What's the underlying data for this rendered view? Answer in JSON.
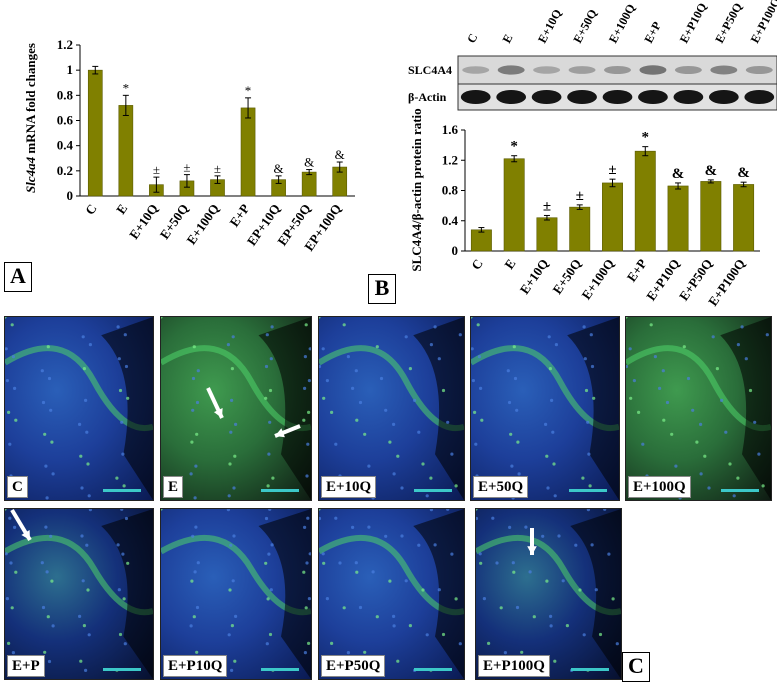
{
  "panelA": {
    "tag": "A",
    "chart_data": {
      "type": "bar",
      "ylabel_italic": "Slc4a4",
      "ylabel_rest": " mRNA fold changes",
      "categories": [
        "C",
        "E",
        "E+10Q",
        "E+50Q",
        "E+100Q",
        "E+P",
        "EP+10Q",
        "EP+50Q",
        "EP+100Q"
      ],
      "values": [
        1.0,
        0.72,
        0.09,
        0.12,
        0.13,
        0.7,
        0.13,
        0.19,
        0.23
      ],
      "errors": [
        0.03,
        0.08,
        0.06,
        0.05,
        0.03,
        0.08,
        0.03,
        0.02,
        0.04
      ],
      "annotations": [
        "",
        "*",
        "±",
        "±",
        "±",
        "*",
        "&",
        "&",
        "&"
      ],
      "yticks": [
        "0",
        "0.2",
        "0.4",
        "0.6",
        "0.8",
        "1",
        "1.2"
      ],
      "ylim": [
        0,
        1.2
      ],
      "bar_color": "#808000"
    }
  },
  "panelB": {
    "tag": "B",
    "blot": {
      "lanes": [
        "C",
        "E",
        "E+10Q",
        "E+50Q",
        "E+100Q",
        "E+P",
        "E+P10Q",
        "E+P50Q",
        "E+P100Q"
      ],
      "rows": [
        "SLC4A4",
        "β-Actin"
      ],
      "slc_intensity": [
        0.25,
        0.55,
        0.25,
        0.3,
        0.35,
        0.6,
        0.35,
        0.5,
        0.35
      ]
    },
    "chart_data": {
      "type": "bar",
      "ylabel": "SLC4A4/β-actin protein ratio",
      "categories": [
        "C",
        "E",
        "E+10Q",
        "E+50Q",
        "E+100Q",
        "E+P",
        "E+P10Q",
        "E+P50Q",
        "E+P100Q"
      ],
      "values": [
        0.28,
        1.22,
        0.44,
        0.58,
        0.9,
        1.32,
        0.86,
        0.92,
        0.88
      ],
      "errors": [
        0.03,
        0.04,
        0.03,
        0.03,
        0.05,
        0.06,
        0.04,
        0.02,
        0.03
      ],
      "annotations": [
        "",
        "*",
        "±",
        "±",
        "±",
        "*",
        "&",
        "&",
        "&"
      ],
      "yticks": [
        "0",
        "0.4",
        "0.8",
        "1.2",
        "1.6"
      ],
      "ylim": [
        0,
        1.6
      ],
      "bar_color": "#808000"
    }
  },
  "panelC": {
    "tag": "C",
    "images": [
      {
        "label": "C",
        "tone": "blue"
      },
      {
        "label": "E",
        "tone": "green"
      },
      {
        "label": "E+10Q",
        "tone": "blue"
      },
      {
        "label": "E+50Q",
        "tone": "blue"
      },
      {
        "label": "E+100Q",
        "tone": "green"
      },
      {
        "label": "E+P",
        "tone": "dark"
      },
      {
        "label": "E+P10Q",
        "tone": "blue"
      },
      {
        "label": "E+P50Q",
        "tone": "blue"
      },
      {
        "label": "E+P100Q",
        "tone": "dark"
      }
    ]
  }
}
